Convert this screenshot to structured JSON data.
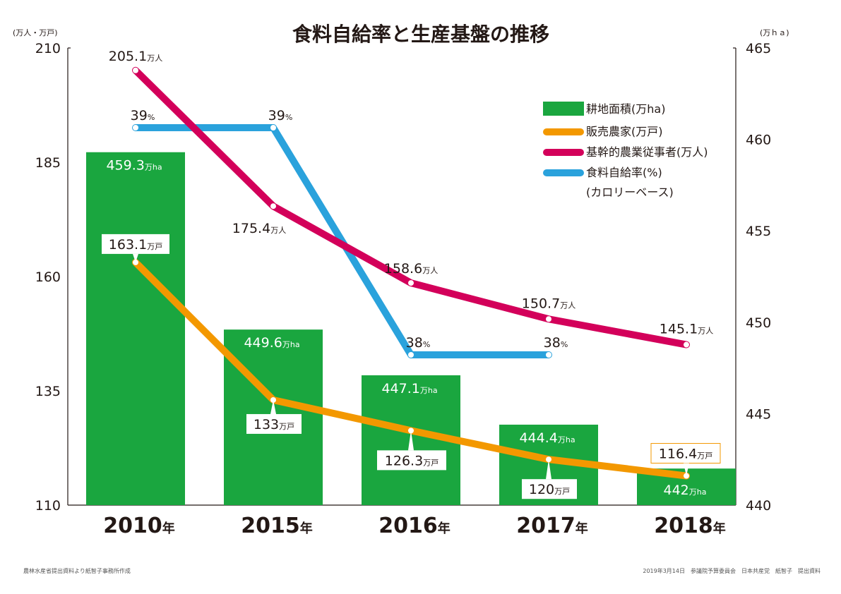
{
  "chart_data": {
    "type": "bar",
    "title": "食料自給率と生産基盤の推移",
    "categories": [
      "2010",
      "2015",
      "2016",
      "2017",
      "2018"
    ],
    "category_suffix": "年",
    "left_axis": {
      "unit_label": "(万人・万戸)",
      "ylim": [
        110,
        210
      ],
      "ticks": [
        210,
        185,
        160,
        135,
        110
      ]
    },
    "right_axis": {
      "unit_label": "(万ｈａ)",
      "ylim": [
        440,
        465
      ],
      "ticks": [
        465,
        460,
        455,
        450,
        445,
        440
      ]
    },
    "series": [
      {
        "name": "耕地面積(万ha)",
        "type": "bar",
        "axis": "right",
        "color": "#1aa63f",
        "unit": "万ha",
        "values": [
          459.3,
          449.6,
          447.1,
          444.4,
          442
        ]
      },
      {
        "name": "販売農家(万戸)",
        "type": "line",
        "axis": "left",
        "color": "#f39800",
        "unit": "万戸",
        "values": [
          163.1,
          133,
          126.3,
          120,
          116.4
        ]
      },
      {
        "name": "基幹的農業従事者(万人)",
        "type": "line",
        "axis": "left",
        "color": "#d3005a",
        "unit": "万人",
        "values": [
          205.1,
          175.4,
          158.6,
          150.7,
          145.1
        ]
      },
      {
        "name": "食料自給率(%)",
        "name_line2": "(カロリーベース)",
        "type": "line",
        "axis": "none",
        "color": "#2aa2dc",
        "unit": "%",
        "values": [
          39,
          39,
          38,
          38,
          null
        ]
      }
    ],
    "legend": "top-right",
    "grid": false
  },
  "footer": {
    "left": "農林水産省提出資料より紙智子事務所作成",
    "right": "2019年3月14日　参議院予算委員会　日本共産党　紙智子　提出資料"
  }
}
